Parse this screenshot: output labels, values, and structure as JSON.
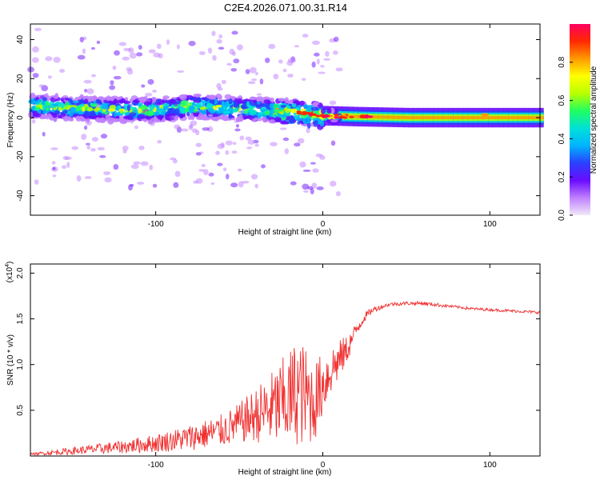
{
  "figure_title": "C2E4.2026.071.00.31.R14",
  "chart_data": [
    {
      "type": "heatmap",
      "title": "C2E4.2026.071.00.31.R14",
      "xlabel": "Height of straight line (km)",
      "ylabel": "Frequency (Hz)",
      "xlim": [
        -175,
        130
      ],
      "ylim": [
        -50,
        48
      ],
      "x_ticks": [
        -100,
        0,
        100
      ],
      "y_ticks": [
        -40,
        -20,
        0,
        20,
        40
      ],
      "colorbar": {
        "label": "Normalized spectral amplitude",
        "range": [
          0,
          1
        ],
        "ticks": [
          0.0,
          0.2,
          0.4,
          0.6,
          0.8
        ],
        "colormap": [
          "#f0e8f8",
          "#c080ff",
          "#6a0cff",
          "#2a40ff",
          "#00b4ff",
          "#00e0d8",
          "#20ff60",
          "#b8ff00",
          "#ffff00",
          "#ff9a00",
          "#ff2a00",
          "#ff0060"
        ]
      },
      "ridge": {
        "description": "scattered energy around 0-10 Hz descending toward 0 Hz; steady line near 0 Hz above 0 km",
        "x": [
          -175,
          -150,
          -125,
          -100,
          -80,
          -60,
          -40,
          -20,
          0,
          20,
          50,
          100,
          130
        ],
        "center_freq": [
          6,
          5,
          4,
          4,
          6,
          5,
          4,
          3,
          1,
          0.5,
          0,
          0,
          0
        ]
      }
    },
    {
      "type": "line",
      "xlabel": "Height of straight line (km)",
      "ylabel": "SNR (10 * v/v)",
      "y_scale_label": "(x10",
      "y_scale_exp": "4",
      "xlim": [
        -175,
        130
      ],
      "ylim": [
        0,
        2.1
      ],
      "x_ticks": [
        -100,
        0,
        100
      ],
      "y_ticks": [
        0.5,
        1.0,
        1.5,
        2.0
      ],
      "series": [
        {
          "name": "SNR",
          "color": "#f03030",
          "x": [
            -175,
            -160,
            -140,
            -120,
            -100,
            -80,
            -60,
            -50,
            -40,
            -30,
            -20,
            -15,
            -10,
            -5,
            0,
            5,
            10,
            15,
            20,
            25,
            30,
            40,
            50,
            60,
            70,
            80,
            90,
            100,
            110,
            120,
            130
          ],
          "values": [
            0.02,
            0.04,
            0.07,
            0.1,
            0.14,
            0.2,
            0.28,
            0.36,
            0.45,
            0.52,
            0.62,
            0.72,
            0.64,
            0.6,
            0.78,
            0.95,
            1.05,
            1.18,
            1.38,
            1.52,
            1.6,
            1.66,
            1.67,
            1.67,
            1.65,
            1.63,
            1.61,
            1.6,
            1.59,
            1.58,
            1.57
          ],
          "spread": [
            0.01,
            0.03,
            0.05,
            0.07,
            0.1,
            0.14,
            0.18,
            0.22,
            0.3,
            0.42,
            0.55,
            0.6,
            0.55,
            0.45,
            0.35,
            0.28,
            0.22,
            0.15,
            0.08,
            0.05,
            0.03,
            0.02,
            0.02,
            0.02,
            0.02,
            0.015,
            0.015,
            0.015,
            0.015,
            0.015,
            0.015
          ]
        }
      ]
    }
  ]
}
